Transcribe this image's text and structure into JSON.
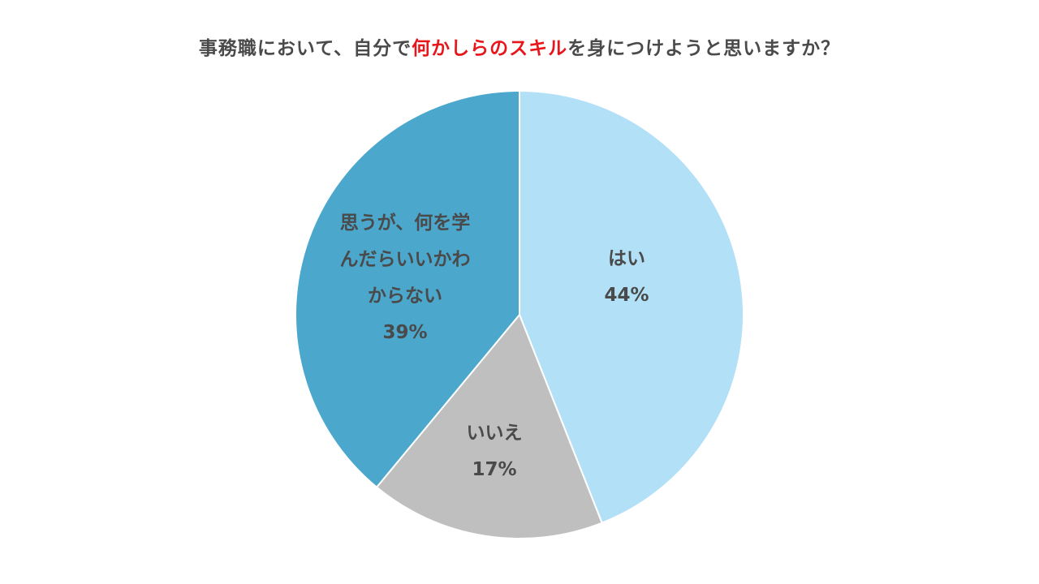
{
  "chart_data": {
    "type": "pie",
    "title": {
      "prefix": "事務職において、自分で",
      "highlight": "何かしらのスキル",
      "suffix": "を身につけようと思いますか？"
    },
    "slices": [
      {
        "label_lines": [
          "はい"
        ],
        "value": 44,
        "value_label": "44%",
        "color": "#b2e0f7"
      },
      {
        "label_lines": [
          "いいえ"
        ],
        "value": 17,
        "value_label": "17%",
        "color": "#bfbfbf"
      },
      {
        "label_lines": [
          "思うが、何を学",
          "んだらいいかわ",
          "からない"
        ],
        "value": 39,
        "value_label": "39%",
        "color": "#4ba7cc"
      }
    ],
    "start_angle": "12 o'clock",
    "direction": "clockwise",
    "colors": {
      "highlight": "#e8161b",
      "text": "#4a4a4a",
      "slice_border": "#ffffff"
    }
  }
}
